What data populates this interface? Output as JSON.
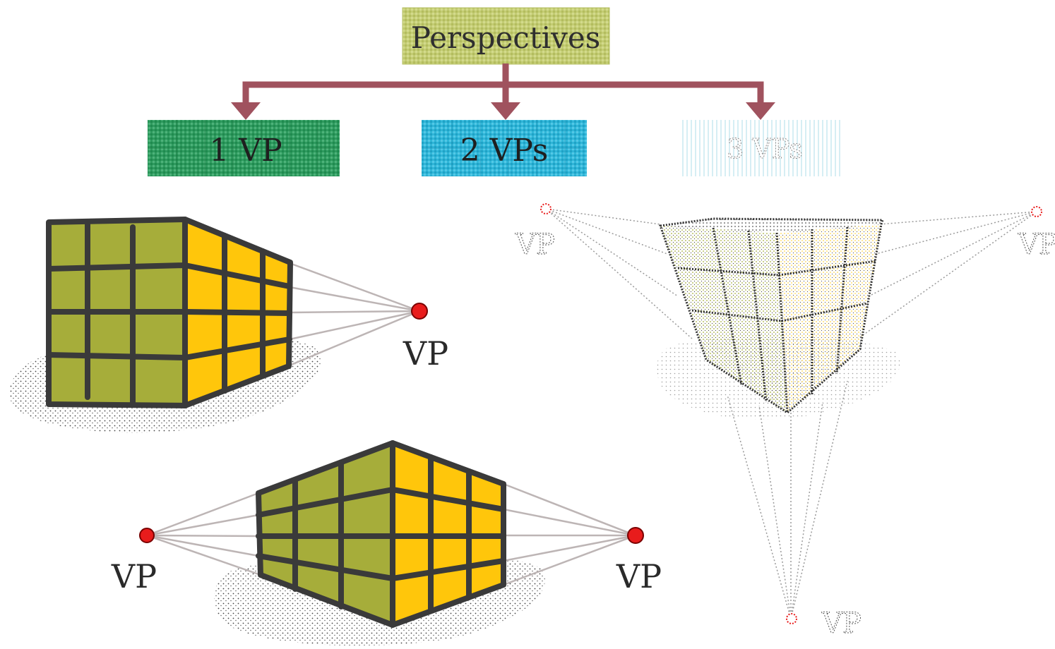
{
  "title": "Perspectives",
  "categories": [
    {
      "label": "1 VP",
      "color": "#2e9a5e",
      "faded": false
    },
    {
      "label": "2 VPs",
      "color": "#2fb6d8",
      "faded": false
    },
    {
      "label": "3 VPs",
      "color": "#bfe6ef",
      "faded": true
    }
  ],
  "vp_label": "VP",
  "colors": {
    "title_box": "#c3cc73",
    "connector": "#a0525e",
    "face_left": "#a6ad3a",
    "face_right": "#ffc60b",
    "outline": "#3a3a3a",
    "vp_dot": "#e81c1c",
    "rays": "#bdb5b5"
  }
}
